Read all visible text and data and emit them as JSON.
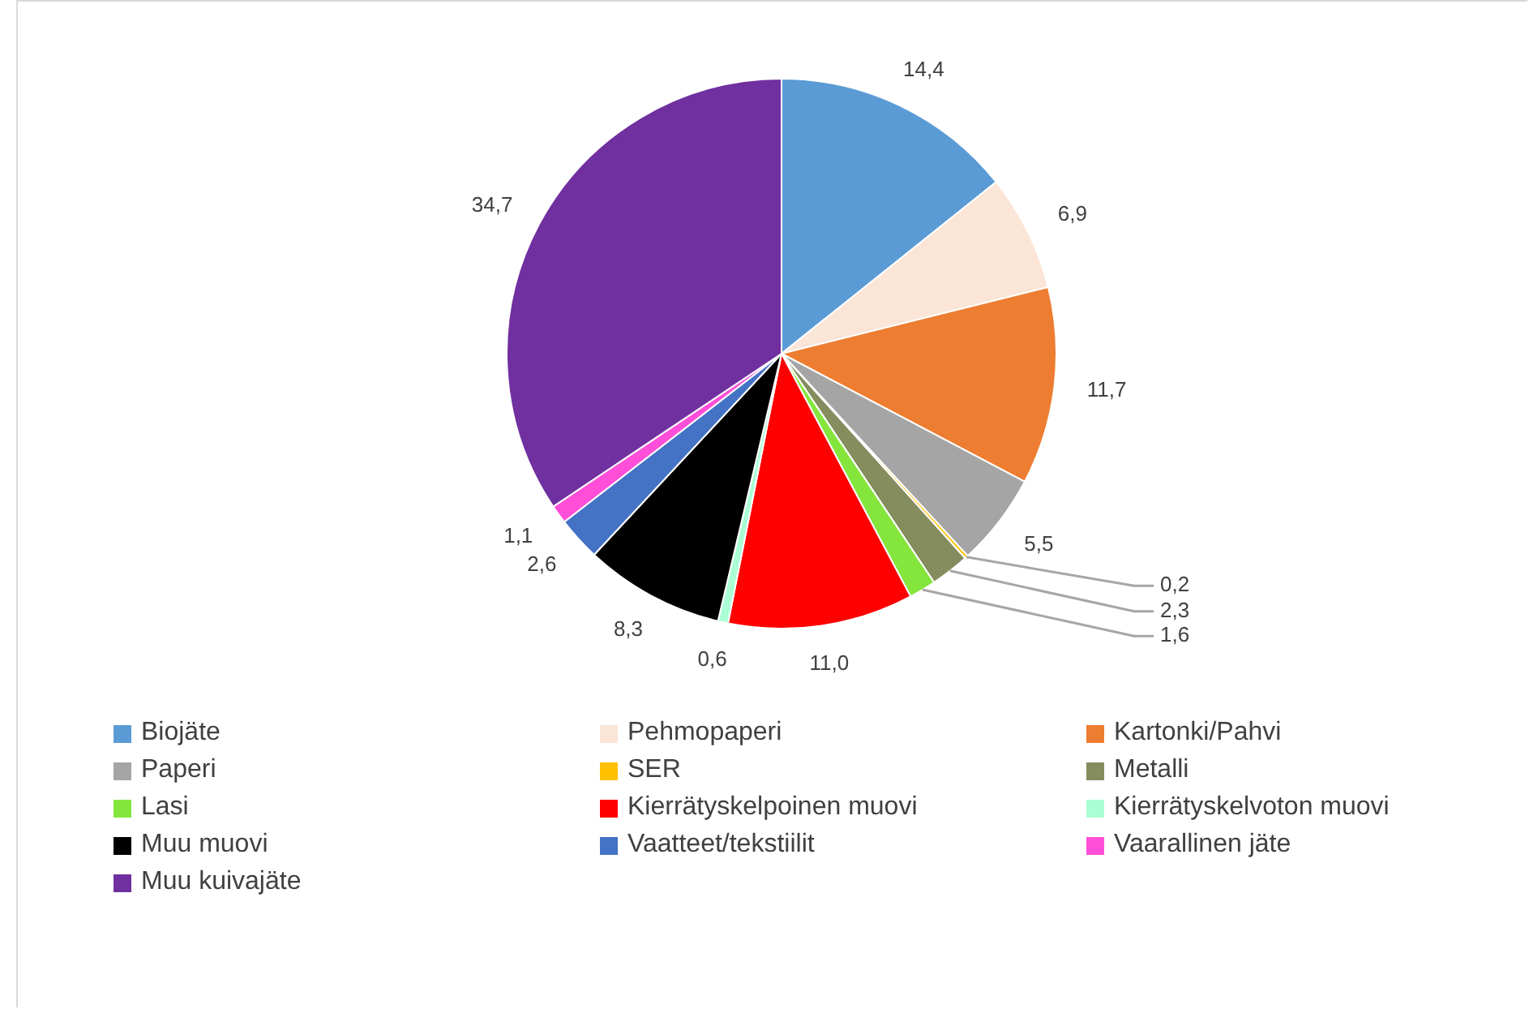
{
  "chart_data": {
    "type": "pie",
    "categories": [
      "Biojäte",
      "Pehmopaperi",
      "Kartonki/Pahvi",
      "Paperi",
      "SER",
      "Metalli",
      "Lasi",
      "Kierrätyskelpoinen muovi",
      "Kierrätyskelvoton muovi",
      "Muu muovi",
      "Vaatteet/tekstiilit",
      "Vaarallinen jäte",
      "Muu kuivajäte"
    ],
    "values": [
      14.4,
      6.9,
      11.7,
      5.5,
      0.2,
      2.3,
      1.6,
      11.0,
      0.6,
      8.3,
      2.6,
      1.1,
      34.7
    ],
    "value_labels": [
      "14,4",
      "6,9",
      "11,7",
      "5,5",
      "0,2",
      "2,3",
      "1,6",
      "11,0",
      "0,6",
      "8,3",
      "2,6",
      "1,1",
      "34,7"
    ],
    "colors": [
      "#5b9bd5",
      "#fbe5d6",
      "#ed7d31",
      "#a5a5a5",
      "#ffc000",
      "#858c5e",
      "#84e63c",
      "#ff0000",
      "#aaffd4",
      "#000000",
      "#4472c4",
      "#ff4fd8",
      "#7030a0"
    ],
    "legend": "bottom"
  }
}
